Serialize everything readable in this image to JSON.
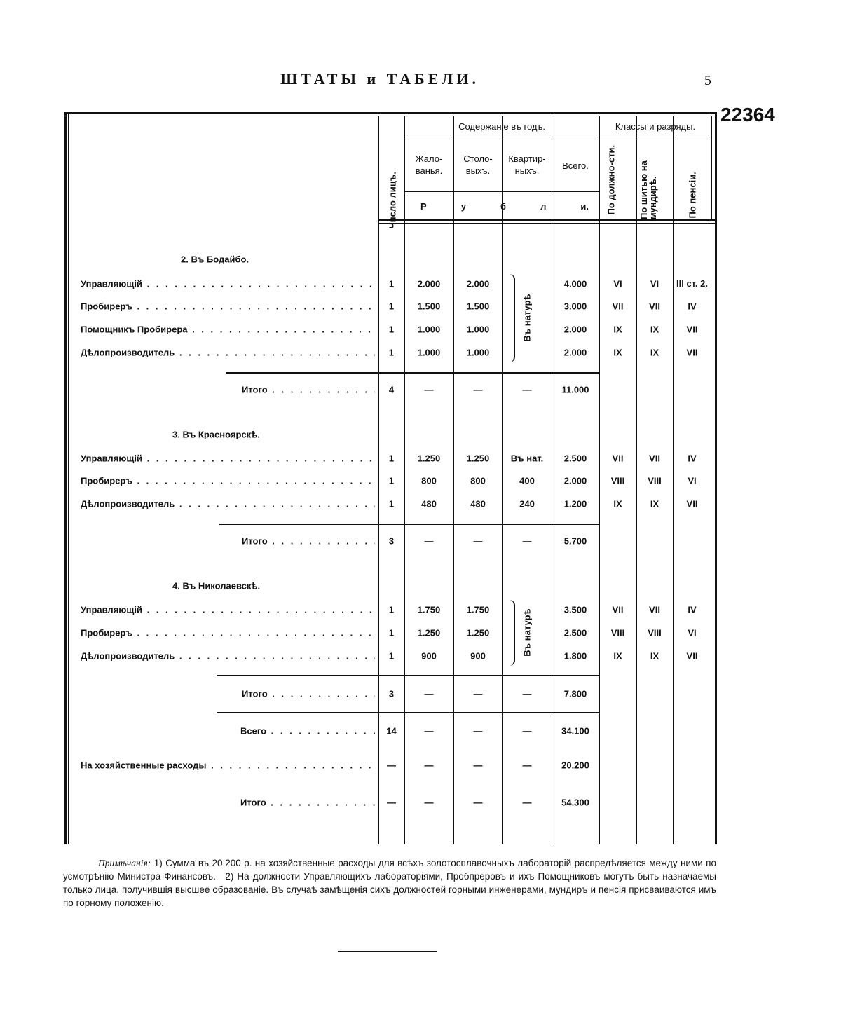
{
  "header": {
    "title": "ШТАТЫ и ТАБЕЛИ.",
    "page_number": "5",
    "stamp": "22364"
  },
  "columns": {
    "count": "Число лицъ.",
    "group_pay": "Содержаніе въ годъ.",
    "salary": "Жало-ванья.",
    "table": "Столо-выхъ.",
    "quarters": "Квартир-ныхъ.",
    "total": "Всего.",
    "unit": [
      "Р",
      "у",
      "б",
      "л",
      "и."
    ],
    "group_class": "Классы и разряды.",
    "by_post": "По должно-сти.",
    "by_uniform": "По шитью на мундирѣ.",
    "by_pension": "По пенсіи."
  },
  "sections": [
    {
      "heading": "2. Въ Бодайбо.",
      "quarters_note": "Въ натурѣ",
      "rows": [
        {
          "label": "Управляющій",
          "count": "1",
          "salary": "2.000",
          "table": "2.000",
          "quarters": "",
          "total": "4.000",
          "post": "VI",
          "uniform": "VI",
          "pension": "III ст. 2."
        },
        {
          "label": "Пробиреръ",
          "count": "1",
          "salary": "1.500",
          "table": "1.500",
          "quarters": "",
          "total": "3.000",
          "post": "VII",
          "uniform": "VII",
          "pension": "IV"
        },
        {
          "label": "Помощникъ Пробирера",
          "count": "1",
          "salary": "1.000",
          "table": "1.000",
          "quarters": "",
          "total": "2.000",
          "post": "IX",
          "uniform": "IX",
          "pension": "VII"
        },
        {
          "label": "Дѣлопроизводитель",
          "count": "1",
          "salary": "1.000",
          "table": "1.000",
          "quarters": "",
          "total": "2.000",
          "post": "IX",
          "uniform": "IX",
          "pension": "VII"
        }
      ],
      "subtotal": {
        "label": "Итого",
        "count": "4",
        "salary": "—",
        "table": "—",
        "quarters": "—",
        "total": "11.000"
      }
    },
    {
      "heading": "3. Въ Красноярскѣ.",
      "quarters_note": "",
      "rows": [
        {
          "label": "Управляющій",
          "count": "1",
          "salary": "1.250",
          "table": "1.250",
          "quarters": "Въ нат.",
          "total": "2.500",
          "post": "VII",
          "uniform": "VII",
          "pension": "IV"
        },
        {
          "label": "Пробиреръ",
          "count": "1",
          "salary": "800",
          "table": "800",
          "quarters": "400",
          "total": "2.000",
          "post": "VIII",
          "uniform": "VIII",
          "pension": "VI"
        },
        {
          "label": "Дѣлопроизводитель",
          "count": "1",
          "salary": "480",
          "table": "480",
          "quarters": "240",
          "total": "1.200",
          "post": "IX",
          "uniform": "IX",
          "pension": "VII"
        }
      ],
      "subtotal": {
        "label": "Итого",
        "count": "3",
        "salary": "—",
        "table": "—",
        "quarters": "—",
        "total": "5.700"
      }
    },
    {
      "heading": "4. Въ Николаевскѣ.",
      "quarters_note": "Въ натурѣ",
      "rows": [
        {
          "label": "Управляющій",
          "count": "1",
          "salary": "1.750",
          "table": "1.750",
          "quarters": "",
          "total": "3.500",
          "post": "VII",
          "uniform": "VII",
          "pension": "IV"
        },
        {
          "label": "Пробиреръ",
          "count": "1",
          "salary": "1.250",
          "table": "1.250",
          "quarters": "",
          "total": "2.500",
          "post": "VIII",
          "uniform": "VIII",
          "pension": "VI"
        },
        {
          "label": "Дѣлопроизводитель",
          "count": "1",
          "salary": "900",
          "table": "900",
          "quarters": "",
          "total": "1.800",
          "post": "IX",
          "uniform": "IX",
          "pension": "VII"
        }
      ],
      "subtotal": {
        "label": "Итого",
        "count": "3",
        "salary": "—",
        "table": "—",
        "quarters": "—",
        "total": "7.800"
      }
    }
  ],
  "totals": [
    {
      "label": "Всего",
      "count": "14",
      "salary": "—",
      "table": "—",
      "quarters": "—",
      "total": "34.100"
    },
    {
      "label": "На хозяйственные расходы",
      "count": "—",
      "salary": "—",
      "table": "—",
      "quarters": "—",
      "total": "20.200"
    },
    {
      "label": "Итого",
      "count": "—",
      "salary": "—",
      "table": "—",
      "quarters": "—",
      "total": "54.300"
    }
  ],
  "note": {
    "lead": "Примѣчанія:",
    "text": "1) Сумма въ 20.200 р. на хозяйственные расходы для всѣхъ золотосплавочныхъ лабораторій распредѣляется между ними по усмотрѣнію Министра Финансовъ.—2) На должности Управляющихъ лабораторіями, Пробпреровъ и ихъ Помощниковъ могутъ быть назначаемы только лица, получившія высшее образованіе. Въ случаѣ замѣщенія сихъ должностей горными инженерами, мундиръ и пенсія присваиваются имъ по горному положенію."
  }
}
